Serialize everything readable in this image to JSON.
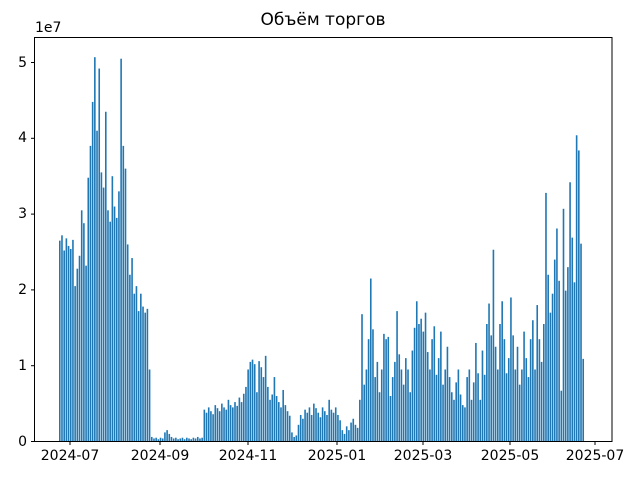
{
  "figure": {
    "title": "Объём торгов",
    "offset_label": "1e7",
    "background_color": "#ffffff",
    "axis_color": "#000000",
    "bar_color": "#1f77b4"
  },
  "chart_data": {
    "type": "bar",
    "title": "Объём торгов",
    "xlabel": "",
    "ylabel": "",
    "grid": false,
    "legend_position": "none",
    "y_offset_factor": "1e7",
    "y_tick_labels": [
      "0",
      "1",
      "2",
      "3",
      "4",
      "5"
    ],
    "y_tick_values": [
      0,
      10000000,
      20000000,
      30000000,
      40000000,
      50000000
    ],
    "ylim": [
      0,
      53300000
    ],
    "x_tick_labels": [
      "2024-07",
      "2024-09",
      "2024-11",
      "2025-01",
      "2025-03",
      "2025-05",
      "2025-07"
    ],
    "x_axis_type": "time (daily bars, late June 2024 – late June 2025)",
    "values_unit": "1e7",
    "values": [
      2.65,
      2.72,
      2.52,
      2.68,
      2.58,
      2.54,
      2.66,
      2.05,
      2.28,
      2.45,
      3.05,
      2.88,
      2.32,
      3.48,
      3.9,
      4.48,
      5.07,
      4.1,
      4.92,
      3.55,
      3.35,
      4.35,
      3.05,
      2.9,
      3.5,
      3.1,
      2.95,
      3.3,
      5.05,
      3.9,
      3.6,
      2.6,
      2.2,
      2.42,
      1.95,
      2.05,
      1.72,
      1.95,
      1.78,
      1.7,
      1.75,
      0.95,
      0.06,
      0.04,
      0.05,
      0.03,
      0.05,
      0.04,
      0.12,
      0.15,
      0.1,
      0.06,
      0.04,
      0.05,
      0.03,
      0.04,
      0.05,
      0.03,
      0.05,
      0.04,
      0.03,
      0.05,
      0.04,
      0.06,
      0.04,
      0.05,
      0.42,
      0.38,
      0.45,
      0.4,
      0.36,
      0.48,
      0.44,
      0.4,
      0.5,
      0.45,
      0.42,
      0.55,
      0.48,
      0.45,
      0.52,
      0.47,
      0.58,
      0.52,
      0.63,
      0.72,
      0.95,
      1.05,
      1.08,
      1.02,
      0.65,
      1.06,
      0.98,
      0.85,
      1.13,
      0.72,
      0.55,
      0.62,
      0.85,
      0.6,
      0.52,
      0.45,
      0.68,
      0.48,
      0.4,
      0.34,
      0.12,
      0.06,
      0.08,
      0.22,
      0.35,
      0.3,
      0.42,
      0.38,
      0.45,
      0.35,
      0.5,
      0.44,
      0.38,
      0.32,
      0.45,
      0.4,
      0.35,
      0.55,
      0.42,
      0.38,
      0.45,
      0.35,
      0.28,
      0.15,
      0.1,
      0.2,
      0.15,
      0.25,
      0.3,
      0.22,
      0.18,
      0.55,
      1.68,
      0.75,
      0.95,
      1.35,
      2.15,
      1.48,
      0.85,
      1.05,
      0.65,
      0.95,
      1.42,
      1.35,
      1.38,
      0.6,
      0.85,
      1.05,
      1.72,
      1.15,
      0.95,
      0.75,
      1.1,
      0.95,
      0.65,
      1.2,
      1.5,
      1.85,
      1.55,
      1.62,
      1.45,
      1.7,
      1.18,
      0.95,
      1.35,
      1.52,
      0.88,
      1.1,
      1.45,
      0.75,
      0.95,
      1.25,
      0.85,
      0.65,
      0.55,
      0.78,
      0.95,
      0.62,
      0.48,
      0.45,
      0.85,
      0.95,
      0.55,
      0.78,
      1.3,
      0.9,
      0.55,
      1.2,
      0.88,
      1.55,
      1.82,
      1.4,
      2.53,
      1.25,
      0.95,
      1.55,
      1.85,
      1.35,
      0.9,
      1.1,
      1.9,
      1.4,
      0.95,
      1.25,
      0.75,
      0.95,
      1.45,
      1.1,
      0.85,
      1.35,
      1.6,
      0.95,
      1.8,
      1.35,
      1.05,
      1.55,
      3.28,
      2.2,
      1.7,
      1.95,
      2.4,
      2.81,
      2.12,
      0.67,
      3.07,
      1.99,
      2.3,
      3.42,
      2.69,
      2.1,
      4.04,
      3.84,
      2.61,
      1.09
    ]
  }
}
